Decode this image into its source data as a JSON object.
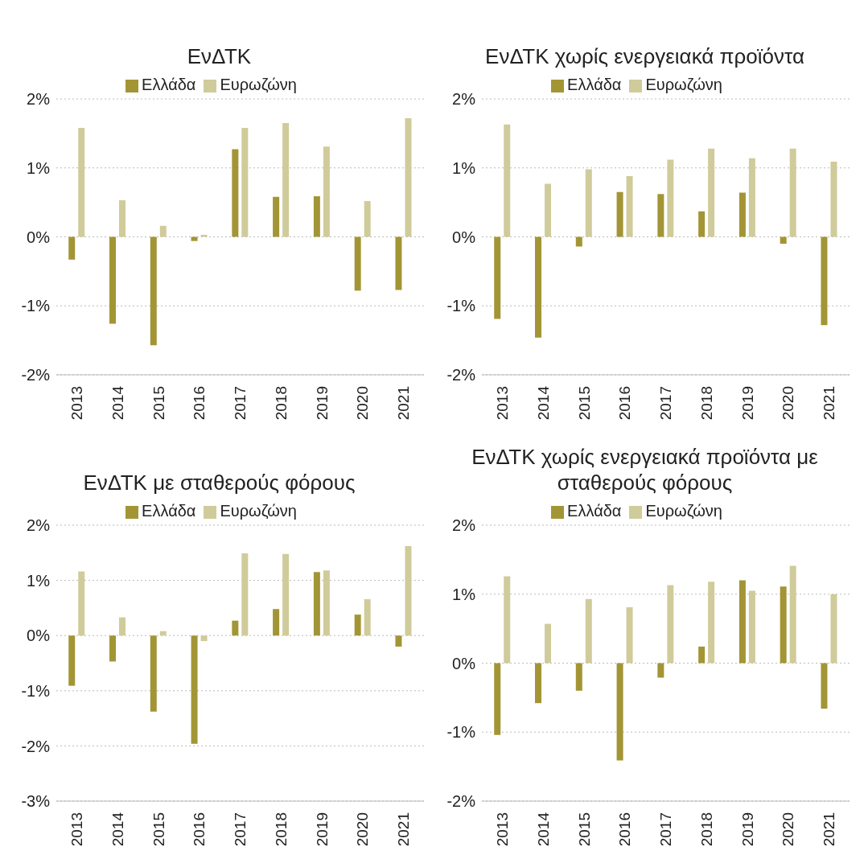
{
  "chart_data": [
    {
      "type": "bar",
      "title": "ΕνΔΤΚ",
      "categories": [
        "2013",
        "2014",
        "2015",
        "2016",
        "2017",
        "2018",
        "2019",
        "2020",
        "2021"
      ],
      "series": [
        {
          "name": "Ελλάδα",
          "color": "#a39535",
          "values": [
            -0.33,
            -1.26,
            -1.57,
            -0.06,
            1.27,
            0.58,
            0.59,
            -0.78,
            -0.77
          ]
        },
        {
          "name": "Ευρωζώνη",
          "color": "#d0cb9a",
          "values": [
            1.58,
            0.53,
            0.16,
            0.03,
            1.58,
            1.65,
            1.31,
            0.52,
            1.72
          ]
        }
      ],
      "ylim": [
        -2,
        2
      ],
      "yticks": [
        {
          "value": -2,
          "label": "-2%"
        },
        {
          "value": -1,
          "label": "-1%"
        },
        {
          "value": 0,
          "label": "0%"
        },
        {
          "value": 1,
          "label": "1%"
        },
        {
          "value": 2,
          "label": "2%"
        }
      ],
      "grid": "y",
      "legend": "top"
    },
    {
      "type": "bar",
      "title": "ΕνΔΤΚ χωρίς ενεργειακά προϊόντα",
      "categories": [
        "2013",
        "2014",
        "2015",
        "2016",
        "2017",
        "2018",
        "2019",
        "2020",
        "2021"
      ],
      "series": [
        {
          "name": "Ελλάδα",
          "color": "#a39535",
          "values": [
            -1.19,
            -1.46,
            -0.14,
            0.65,
            0.62,
            0.37,
            0.64,
            -0.1,
            -1.28
          ]
        },
        {
          "name": "Ευρωζώνη",
          "color": "#d0cb9a",
          "values": [
            1.63,
            0.77,
            0.98,
            0.88,
            1.12,
            1.28,
            1.14,
            1.28,
            1.09
          ]
        }
      ],
      "ylim": [
        -2,
        2
      ],
      "yticks": [
        {
          "value": -2,
          "label": "-2%"
        },
        {
          "value": -1,
          "label": "-1%"
        },
        {
          "value": 0,
          "label": "0%"
        },
        {
          "value": 1,
          "label": "1%"
        },
        {
          "value": 2,
          "label": "2%"
        }
      ],
      "grid": "y",
      "legend": "top"
    },
    {
      "type": "bar",
      "title": "ΕνΔΤΚ με σταθερούς φόρους",
      "categories": [
        "2013",
        "2014",
        "2015",
        "2016",
        "2017",
        "2018",
        "2019",
        "2020",
        "2021"
      ],
      "series": [
        {
          "name": "Ελλάδα",
          "color": "#a39535",
          "values": [
            -0.91,
            -0.47,
            -1.38,
            -1.96,
            0.27,
            0.48,
            1.15,
            0.38,
            -0.2
          ]
        },
        {
          "name": "Ευρωζώνη",
          "color": "#d0cb9a",
          "values": [
            1.16,
            0.33,
            0.08,
            -0.1,
            1.49,
            1.48,
            1.18,
            0.66,
            1.62
          ]
        }
      ],
      "ylim": [
        -3,
        2
      ],
      "yticks": [
        {
          "value": -3,
          "label": "-3%"
        },
        {
          "value": -2,
          "label": "-2%"
        },
        {
          "value": -1,
          "label": "-1%"
        },
        {
          "value": 0,
          "label": "0%"
        },
        {
          "value": 1,
          "label": "1%"
        },
        {
          "value": 2,
          "label": "2%"
        }
      ],
      "grid": "y",
      "legend": "top"
    },
    {
      "type": "bar",
      "title": "ΕνΔΤΚ χωρίς ενεργειακά προϊόντα με σταθερούς φόρους",
      "categories": [
        "2013",
        "2014",
        "2015",
        "2016",
        "2017",
        "2018",
        "2019",
        "2020",
        "2021"
      ],
      "series": [
        {
          "name": "Ελλάδα",
          "color": "#a39535",
          "values": [
            -1.04,
            -0.58,
            -0.4,
            -1.41,
            -0.21,
            0.24,
            1.2,
            1.11,
            -0.66
          ]
        },
        {
          "name": "Ευρωζώνη",
          "color": "#d0cb9a",
          "values": [
            1.26,
            0.57,
            0.93,
            0.81,
            1.13,
            1.18,
            1.05,
            1.41,
            1.0
          ]
        }
      ],
      "ylim": [
        -2,
        2
      ],
      "yticks": [
        {
          "value": -2,
          "label": "-2%"
        },
        {
          "value": -1,
          "label": "-1%"
        },
        {
          "value": 0,
          "label": "0%"
        },
        {
          "value": 1,
          "label": "1%"
        },
        {
          "value": 2,
          "label": "2%"
        }
      ],
      "grid": "y",
      "legend": "top"
    }
  ]
}
